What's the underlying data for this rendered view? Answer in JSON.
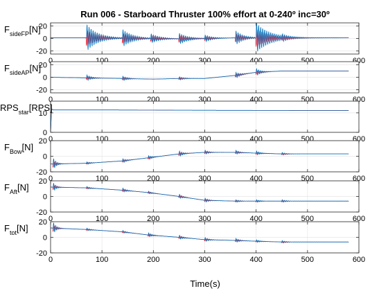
{
  "figure": {
    "title": "Run 006 - Starboard Thruster 100% effort at 0-240º inc=30º",
    "xlabel": "Time(s)"
  },
  "colors": {
    "series_a": "#0072BD",
    "series_b": "#E2001A",
    "axes": "#262626",
    "grid": "#E6E6E6",
    "background": "#FFFFFF"
  },
  "chart_data": [
    {
      "type": "line",
      "ylabel_main": "F",
      "ylabel_sub": "sideFP",
      "ylabel_unit": "[N]",
      "xlim": [
        0,
        600
      ],
      "ylim": [
        -25,
        25
      ],
      "xticks": [
        "0",
        "100",
        "200",
        "300",
        "400",
        "500",
        "600"
      ],
      "yticks": [
        "20",
        "0",
        "-20"
      ],
      "grid": true,
      "x": [
        0,
        70,
        130,
        140,
        200,
        250,
        300,
        360,
        400,
        450,
        580
      ],
      "series": [
        {
          "color_key": "series_a",
          "values": [
            1,
            1,
            0.5,
            0.5,
            0,
            -0.5,
            0,
            1,
            1,
            1,
            1
          ]
        }
      ],
      "bursts": [
        {
          "x": 70,
          "amp": 22,
          "decay": 22
        },
        {
          "x": 140,
          "amp": 14,
          "decay": 20
        },
        {
          "x": 195,
          "amp": 7,
          "decay": 18
        },
        {
          "x": 250,
          "amp": 9,
          "decay": 18
        },
        {
          "x": 300,
          "amp": 6,
          "decay": 15
        },
        {
          "x": 360,
          "amp": 12,
          "decay": 15
        },
        {
          "x": 400,
          "amp": 24,
          "decay": 28
        },
        {
          "x": 450,
          "amp": 6,
          "decay": 15
        }
      ]
    },
    {
      "type": "line",
      "ylabel_main": "F",
      "ylabel_sub": "sideAP",
      "ylabel_unit": "[N]",
      "xlim": [
        0,
        600
      ],
      "ylim": [
        -25,
        25
      ],
      "xticks": [
        "0",
        "100",
        "200",
        "300",
        "400",
        "500",
        "600"
      ],
      "yticks": [
        "20",
        "0",
        "-20"
      ],
      "grid": true,
      "x": [
        0,
        70,
        140,
        200,
        250,
        300,
        360,
        400,
        450,
        580
      ],
      "series": [
        {
          "color_key": "series_a",
          "values": [
            0,
            -1,
            -2,
            -3,
            -2,
            -2,
            3,
            8,
            10,
            10
          ]
        }
      ],
      "bursts": [
        {
          "x": 70,
          "amp": 5,
          "decay": 10
        },
        {
          "x": 140,
          "amp": 4,
          "decay": 10
        },
        {
          "x": 250,
          "amp": 3,
          "decay": 10
        },
        {
          "x": 360,
          "amp": 5,
          "decay": 10
        },
        {
          "x": 400,
          "amp": 6,
          "decay": 10
        }
      ]
    },
    {
      "type": "line",
      "ylabel_main": "RPS",
      "ylabel_sub": "star",
      "ylabel_unit": "[RPS]",
      "xlim": [
        0,
        600
      ],
      "ylim": [
        0,
        16
      ],
      "xticks": [
        "0",
        "100",
        "200",
        "300",
        "400",
        "500",
        "600"
      ],
      "yticks": [
        "10",
        "0"
      ],
      "grid": true,
      "x": [
        0,
        2,
        5,
        100,
        300,
        500,
        580
      ],
      "series": [
        {
          "color_key": "series_a",
          "values": [
            0,
            12,
            11.5,
            11.5,
            11.3,
            11.2,
            11.2
          ]
        }
      ],
      "bursts": []
    },
    {
      "type": "line",
      "ylabel_main": "F",
      "ylabel_sub": "Bow",
      "ylabel_unit": "[N]",
      "xlim": [
        0,
        600
      ],
      "ylim": [
        -20,
        20
      ],
      "xticks": [
        "0",
        "100",
        "200",
        "300",
        "400",
        "500",
        "600"
      ],
      "yticks": [
        "20",
        "0",
        "-20"
      ],
      "grid": true,
      "x": [
        0,
        70,
        140,
        190,
        250,
        300,
        360,
        400,
        450,
        580
      ],
      "series": [
        {
          "color_key": "series_a",
          "values": [
            -10,
            -9,
            -6,
            -2,
            3,
            5,
            5,
            4,
            3,
            3
          ]
        }
      ],
      "bursts": [
        {
          "x": 5,
          "amp": 8,
          "decay": 6
        },
        {
          "x": 70,
          "amp": 2,
          "decay": 8
        },
        {
          "x": 140,
          "amp": 3,
          "decay": 8
        },
        {
          "x": 190,
          "amp": 3,
          "decay": 8
        },
        {
          "x": 250,
          "amp": 4,
          "decay": 8
        },
        {
          "x": 300,
          "amp": 3,
          "decay": 8
        },
        {
          "x": 360,
          "amp": 3,
          "decay": 8
        },
        {
          "x": 400,
          "amp": 3,
          "decay": 8
        },
        {
          "x": 450,
          "amp": 2,
          "decay": 8
        }
      ]
    },
    {
      "type": "line",
      "ylabel_main": "F",
      "ylabel_sub": "Aft",
      "ylabel_unit": "[N]",
      "xlim": [
        0,
        600
      ],
      "ylim": [
        -20,
        20
      ],
      "xticks": [
        "0",
        "100",
        "200",
        "300",
        "400",
        "500",
        "600"
      ],
      "yticks": [
        "20",
        "0",
        "-20"
      ],
      "grid": true,
      "x": [
        0,
        70,
        140,
        190,
        250,
        300,
        360,
        400,
        450,
        580
      ],
      "series": [
        {
          "color_key": "series_a",
          "values": [
            12,
            11,
            8,
            5,
            0,
            -5,
            -6,
            -6,
            -6,
            -6
          ]
        }
      ],
      "bursts": [
        {
          "x": 5,
          "amp": 6,
          "decay": 6
        },
        {
          "x": 70,
          "amp": 2,
          "decay": 8
        },
        {
          "x": 140,
          "amp": 3,
          "decay": 8
        },
        {
          "x": 190,
          "amp": 2,
          "decay": 8
        },
        {
          "x": 250,
          "amp": 3,
          "decay": 8
        },
        {
          "x": 300,
          "amp": 3,
          "decay": 8
        },
        {
          "x": 360,
          "amp": 2,
          "decay": 8
        },
        {
          "x": 400,
          "amp": 2,
          "decay": 8
        },
        {
          "x": 450,
          "amp": 2,
          "decay": 8
        }
      ]
    },
    {
      "type": "line",
      "ylabel_main": "F",
      "ylabel_sub": "tot",
      "ylabel_unit": "[N]",
      "xlim": [
        0,
        600
      ],
      "ylim": [
        -20,
        20
      ],
      "xticks": [
        "0",
        "100",
        "200",
        "300",
        "400",
        "500",
        "600"
      ],
      "yticks": [
        "20",
        "0",
        "-20"
      ],
      "grid": true,
      "x": [
        0,
        70,
        140,
        190,
        250,
        300,
        360,
        400,
        450,
        580
      ],
      "series": [
        {
          "color_key": "series_a",
          "values": [
            12,
            10,
            7,
            3,
            0,
            -3,
            -4,
            -5,
            -6,
            -6
          ]
        }
      ],
      "bursts": [
        {
          "x": 5,
          "amp": 8,
          "decay": 6
        },
        {
          "x": 70,
          "amp": 2,
          "decay": 8
        },
        {
          "x": 140,
          "amp": 2,
          "decay": 8
        },
        {
          "x": 190,
          "amp": 3,
          "decay": 8
        },
        {
          "x": 250,
          "amp": 3,
          "decay": 8
        },
        {
          "x": 300,
          "amp": 3,
          "decay": 8
        },
        {
          "x": 360,
          "amp": 3,
          "decay": 8
        },
        {
          "x": 400,
          "amp": 2,
          "decay": 8
        },
        {
          "x": 450,
          "amp": 2,
          "decay": 8
        }
      ]
    }
  ]
}
